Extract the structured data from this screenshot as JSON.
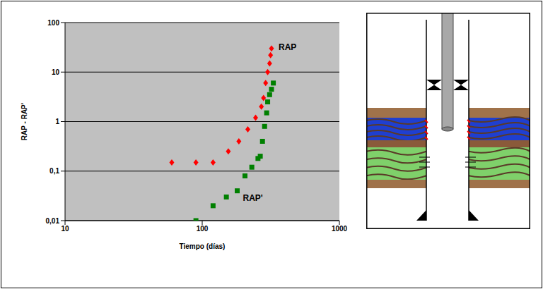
{
  "chart_data": {
    "type": "scatter",
    "log": true,
    "grid": true,
    "x_label": "Tiempo (días)",
    "y_label": "RAP - RAP'",
    "xlim": [
      10,
      1000
    ],
    "xticks": [
      10,
      100,
      1000
    ],
    "ylim": [
      0.01,
      100
    ],
    "yticks": [
      {
        "value": 0.01,
        "label": "0,01"
      },
      {
        "value": 0.1,
        "label": "0,1"
      },
      1,
      10,
      100
    ],
    "series": [
      {
        "name": "RAP",
        "color": "#ff0000",
        "marker": "diamond",
        "x": [
          60,
          90,
          120,
          155,
          185,
          215,
          245,
          270,
          280,
          290,
          300,
          310,
          315,
          320
        ],
        "values": [
          0.15,
          0.15,
          0.15,
          0.25,
          0.4,
          0.7,
          1.2,
          2,
          3,
          6,
          10,
          15,
          22,
          30
        ]
      },
      {
        "name": "RAP'",
        "color": "#008000",
        "marker": "square",
        "x": [
          90,
          120,
          150,
          180,
          205,
          230,
          255,
          265,
          275,
          285,
          295,
          300,
          310,
          320,
          330
        ],
        "values": [
          0.01,
          0.02,
          0.03,
          0.04,
          0.08,
          0.12,
          0.18,
          0.2,
          0.4,
          0.8,
          1.5,
          2.5,
          3.5,
          4.5,
          6
        ]
      }
    ]
  }
}
